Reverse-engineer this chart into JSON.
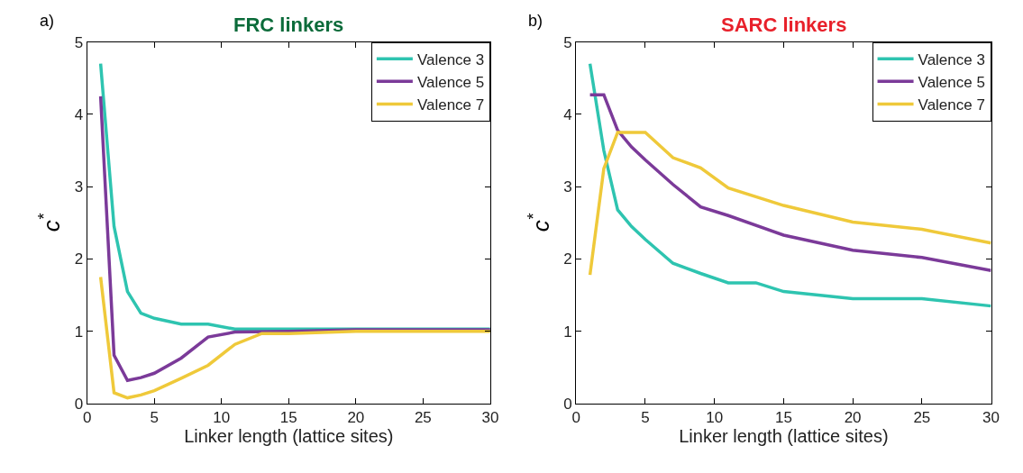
{
  "chart_data": [
    {
      "type": "line",
      "title": "FRC linkers",
      "xlabel": "Linker length (lattice sites)",
      "ylabel": "c$^{*}$",
      "annotations": [
        "a)"
      ],
      "xlim": [
        0,
        30
      ],
      "ylim": [
        0,
        5
      ],
      "xticks": [
        0,
        5,
        10,
        15,
        20,
        25,
        30
      ],
      "yticks": [
        0,
        1,
        2,
        3,
        4,
        5
      ],
      "legend": "top right",
      "grid": false,
      "series": [
        {
          "name": "Valence 3",
          "color": "#2ec4b0",
          "x": [
            1,
            2,
            3,
            4,
            5,
            7,
            9,
            11,
            15,
            20,
            30
          ],
          "values": [
            4.7,
            2.45,
            1.55,
            1.25,
            1.18,
            1.1,
            1.1,
            1.03,
            1.03,
            1.03,
            1.03
          ]
        },
        {
          "name": "Valence 5",
          "color": "#7b3a99",
          "x": [
            1,
            2,
            3,
            4,
            5,
            7,
            9,
            11,
            15,
            20,
            30
          ],
          "values": [
            4.25,
            0.67,
            0.32,
            0.36,
            0.42,
            0.63,
            0.92,
            0.99,
            1.0,
            1.02,
            1.02
          ]
        },
        {
          "name": "Valence 7",
          "color": "#efc93a",
          "x": [
            1,
            2,
            3,
            4,
            5,
            7,
            9,
            11,
            13,
            15,
            20,
            30
          ],
          "values": [
            1.75,
            0.15,
            0.08,
            0.12,
            0.18,
            0.35,
            0.53,
            0.82,
            0.97,
            0.97,
            1.0,
            1.0
          ]
        }
      ]
    },
    {
      "type": "line",
      "title": "SARC linkers",
      "xlabel": "Linker length (lattice sites)",
      "ylabel": "c$^{*}$",
      "annotations": [
        "b)"
      ],
      "xlim": [
        0,
        30
      ],
      "ylim": [
        0,
        5
      ],
      "xticks": [
        0,
        5,
        10,
        15,
        20,
        25,
        30
      ],
      "yticks": [
        0,
        1,
        2,
        3,
        4,
        5
      ],
      "legend": "top right",
      "grid": false,
      "series": [
        {
          "name": "Valence 3",
          "color": "#2ec4b0",
          "x": [
            1,
            2,
            3,
            4,
            5,
            7,
            9,
            11,
            13,
            15,
            20,
            25,
            30
          ],
          "values": [
            4.7,
            3.5,
            2.68,
            2.45,
            2.27,
            1.94,
            1.8,
            1.67,
            1.67,
            1.55,
            1.45,
            1.45,
            1.35
          ]
        },
        {
          "name": "Valence 5",
          "color": "#7b3a99",
          "x": [
            1,
            2,
            3,
            4,
            5,
            7,
            9,
            11,
            15,
            20,
            25,
            30
          ],
          "values": [
            4.27,
            4.27,
            3.78,
            3.55,
            3.37,
            3.03,
            2.72,
            2.6,
            2.33,
            2.12,
            2.02,
            1.84
          ]
        },
        {
          "name": "Valence 7",
          "color": "#efc93a",
          "x": [
            1,
            2,
            3,
            4,
            5,
            7,
            9,
            11,
            15,
            20,
            25,
            30
          ],
          "values": [
            1.78,
            3.25,
            3.75,
            3.75,
            3.75,
            3.4,
            3.26,
            2.98,
            2.74,
            2.51,
            2.41,
            2.22
          ]
        }
      ]
    }
  ]
}
